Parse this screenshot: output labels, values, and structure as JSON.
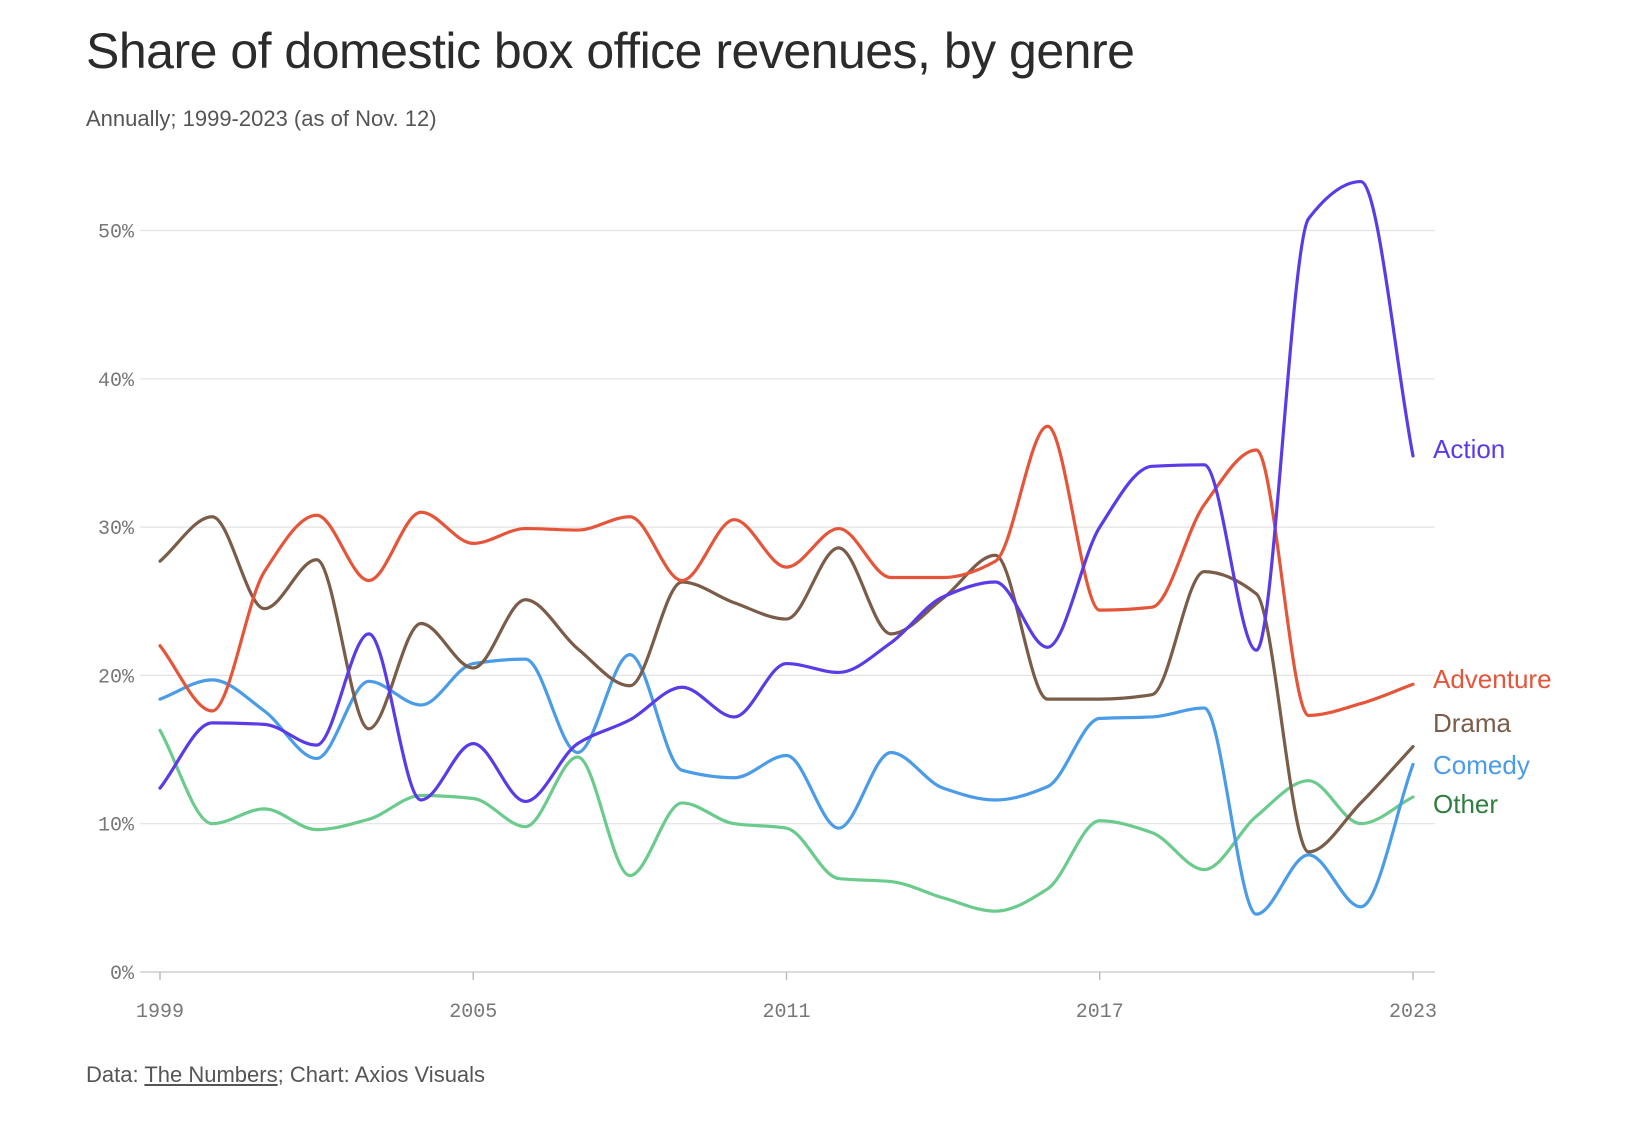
{
  "title": "Share of domestic box office revenues, by genre",
  "subtitle": "Annually; 1999-2023 (as of Nov. 12)",
  "footer": {
    "prefix": "Data: ",
    "source": "The Numbers",
    "suffix": "; Chart: Axios Visuals"
  },
  "chart_data": {
    "type": "line",
    "x": [
      1999,
      2000,
      2001,
      2002,
      2003,
      2004,
      2005,
      2006,
      2007,
      2008,
      2009,
      2010,
      2011,
      2012,
      2013,
      2014,
      2015,
      2016,
      2017,
      2018,
      2019,
      2020,
      2021,
      2022,
      2023
    ],
    "ylim": [
      0,
      55
    ],
    "yticks": [
      0,
      10,
      20,
      30,
      40,
      50
    ],
    "ytick_labels": [
      "0%",
      "10%",
      "20%",
      "30%",
      "40%",
      "50%"
    ],
    "xticks": [
      1999,
      2005,
      2011,
      2017,
      2023
    ],
    "xtick_labels": [
      "1999",
      "2005",
      "2011",
      "2017",
      "2023"
    ],
    "grid": true,
    "legend": "direct labels at line ends",
    "series": [
      {
        "name": "Action",
        "color": "#5b3be8",
        "values": [
          12.4,
          16.8,
          16.7,
          15.3,
          22.8,
          11.6,
          15.4,
          11.5,
          15.4,
          17.0,
          19.2,
          17.2,
          20.8,
          20.2,
          22.2,
          25.3,
          26.3,
          21.9,
          30.0,
          34.1,
          34.2,
          21.7,
          50.8,
          53.3,
          34.8
        ]
      },
      {
        "name": "Adventure",
        "color": "#e5553a",
        "values": [
          22.0,
          17.6,
          27.0,
          30.8,
          26.4,
          31.0,
          28.9,
          29.9,
          29.8,
          30.7,
          26.4,
          30.5,
          27.3,
          29.9,
          26.6,
          26.6,
          27.7,
          36.8,
          24.4,
          24.6,
          31.5,
          35.2,
          17.3,
          18.1,
          19.4
        ]
      },
      {
        "name": "Drama",
        "color": "#7a5c48",
        "values": [
          27.7,
          30.7,
          24.5,
          27.8,
          16.4,
          23.5,
          20.5,
          25.1,
          21.8,
          19.3,
          26.3,
          24.9,
          23.8,
          28.6,
          22.8,
          25.2,
          28.1,
          18.4,
          18.4,
          18.7,
          27.0,
          25.5,
          8.1,
          11.4,
          15.2
        ]
      },
      {
        "name": "Comedy",
        "color": "#4a9be8",
        "values": [
          18.4,
          19.7,
          17.6,
          14.4,
          19.6,
          18.0,
          20.8,
          21.1,
          14.8,
          21.4,
          13.6,
          13.1,
          14.6,
          9.7,
          14.8,
          12.4,
          11.6,
          12.5,
          17.1,
          17.2,
          17.8,
          3.9,
          7.9,
          4.4,
          14.0
        ]
      },
      {
        "name": "Other",
        "color": "#6acb8c",
        "label_color": "#2f7d3f",
        "values": [
          16.3,
          10.0,
          11.0,
          9.6,
          10.3,
          11.9,
          11.7,
          9.8,
          14.5,
          6.5,
          11.4,
          10.0,
          9.7,
          6.3,
          6.1,
          5.0,
          4.1,
          5.6,
          10.2,
          9.4,
          6.9,
          10.5,
          12.9,
          10.0,
          11.8
        ]
      }
    ]
  }
}
